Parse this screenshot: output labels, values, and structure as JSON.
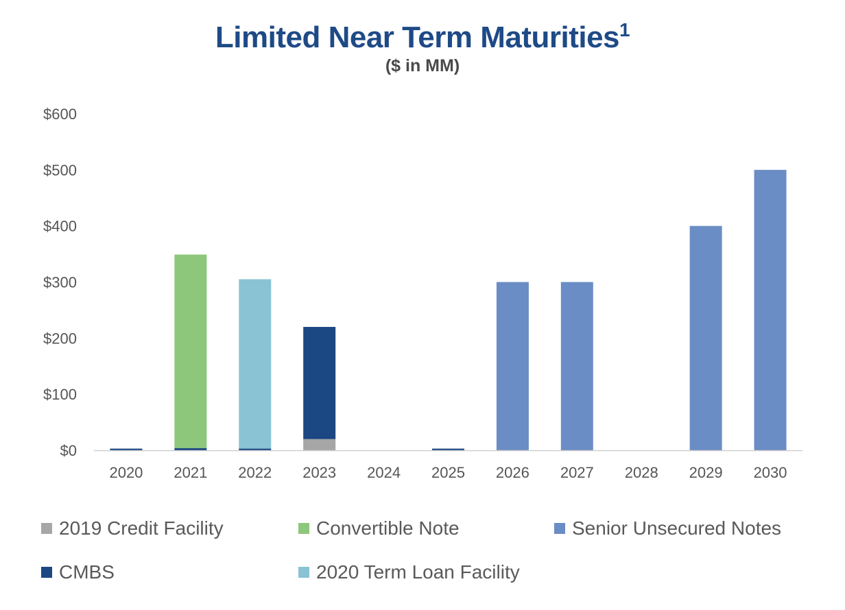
{
  "header": {
    "title": "Limited Near Term Maturities",
    "title_sup": "1",
    "subtitle": "($ in MM)"
  },
  "chart_data": {
    "type": "bar",
    "stacked": true,
    "categories": [
      "2020",
      "2021",
      "2022",
      "2023",
      "2024",
      "2025",
      "2026",
      "2027",
      "2028",
      "2029",
      "2030"
    ],
    "ylim": [
      0,
      600
    ],
    "yticks": [
      0,
      100,
      200,
      300,
      400,
      500,
      600
    ],
    "ytick_labels": [
      "$0",
      "$100",
      "$200",
      "$300",
      "$400",
      "$500",
      "$600"
    ],
    "grid": false,
    "legend_position": "bottom",
    "series": [
      {
        "name": "2019 Credit Facility",
        "color": "#a6a6a6",
        "values": [
          0,
          0,
          0,
          20,
          0,
          0,
          0,
          0,
          0,
          0,
          0
        ]
      },
      {
        "name": "CMBS",
        "color": "#1b4782",
        "values": [
          3,
          4,
          3,
          200,
          0,
          3,
          0,
          0,
          0,
          0,
          0
        ]
      },
      {
        "name": "Convertible Note",
        "color": "#8dc77b",
        "values": [
          0,
          345,
          0,
          0,
          0,
          0,
          0,
          0,
          0,
          0,
          0
        ]
      },
      {
        "name": "2020 Term Loan Facility",
        "color": "#89c3d4",
        "values": [
          0,
          0,
          302,
          0,
          0,
          0,
          0,
          0,
          0,
          0,
          0
        ]
      },
      {
        "name": "Senior Unsecured Notes",
        "color": "#6b8dc5",
        "values": [
          0,
          0,
          0,
          0,
          0,
          0,
          300,
          300,
          0,
          400,
          500
        ]
      }
    ]
  },
  "legend": {
    "order": [
      "2019 Credit Facility",
      "Convertible Note",
      "Senior Unsecured Notes",
      "CMBS",
      "2020 Term Loan Facility"
    ]
  }
}
